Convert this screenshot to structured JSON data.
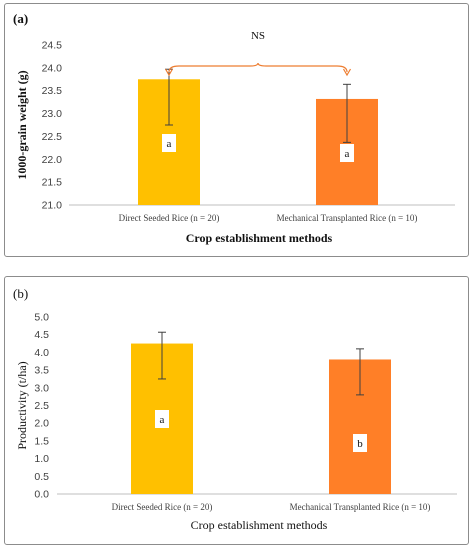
{
  "chart_data": [
    {
      "type": "bar",
      "panel_label": "(a)",
      "categories": [
        "Direct Seeded Rice (n = 20)",
        "Mechanical Transplanted Rice (n = 10)"
      ],
      "values": [
        23.75,
        23.32
      ],
      "error_high": [
        23.97,
        23.64
      ],
      "error_low": [
        22.75,
        22.37
      ],
      "bar_labels": [
        "a",
        "a"
      ],
      "colors": [
        "#FFC000",
        "#FF7F27"
      ],
      "ylim": [
        21.0,
        24.5
      ],
      "yticks": [
        "21.0",
        "21.5",
        "22.0",
        "22.5",
        "23.0",
        "23.5",
        "24.0",
        "24.5"
      ],
      "xlabel": "Crop establishment methods",
      "ylabel": "1000-grain weight (g)",
      "annotation": "NS",
      "annotation_color": "#ED7D31",
      "grid": false
    },
    {
      "type": "bar",
      "panel_label": "(b)",
      "categories": [
        "Direct Seeded Rice (n = 20)",
        "Mechanical Transplanted Rice (n = 10)"
      ],
      "values": [
        4.25,
        3.8
      ],
      "error_high": [
        4.57,
        4.1
      ],
      "error_low": [
        3.25,
        2.8
      ],
      "bar_labels": [
        "a",
        "b"
      ],
      "colors": [
        "#FFC000",
        "#FF7F27"
      ],
      "ylim": [
        0.0,
        5.0
      ],
      "yticks": [
        "0.0",
        "0.5",
        "1.0",
        "1.5",
        "2.0",
        "2.5",
        "3.0",
        "3.5",
        "4.0",
        "4.5",
        "5.0"
      ],
      "xlabel": "Crop establishment methods",
      "ylabel": "Productivity (t/ha)",
      "grid": false
    }
  ]
}
